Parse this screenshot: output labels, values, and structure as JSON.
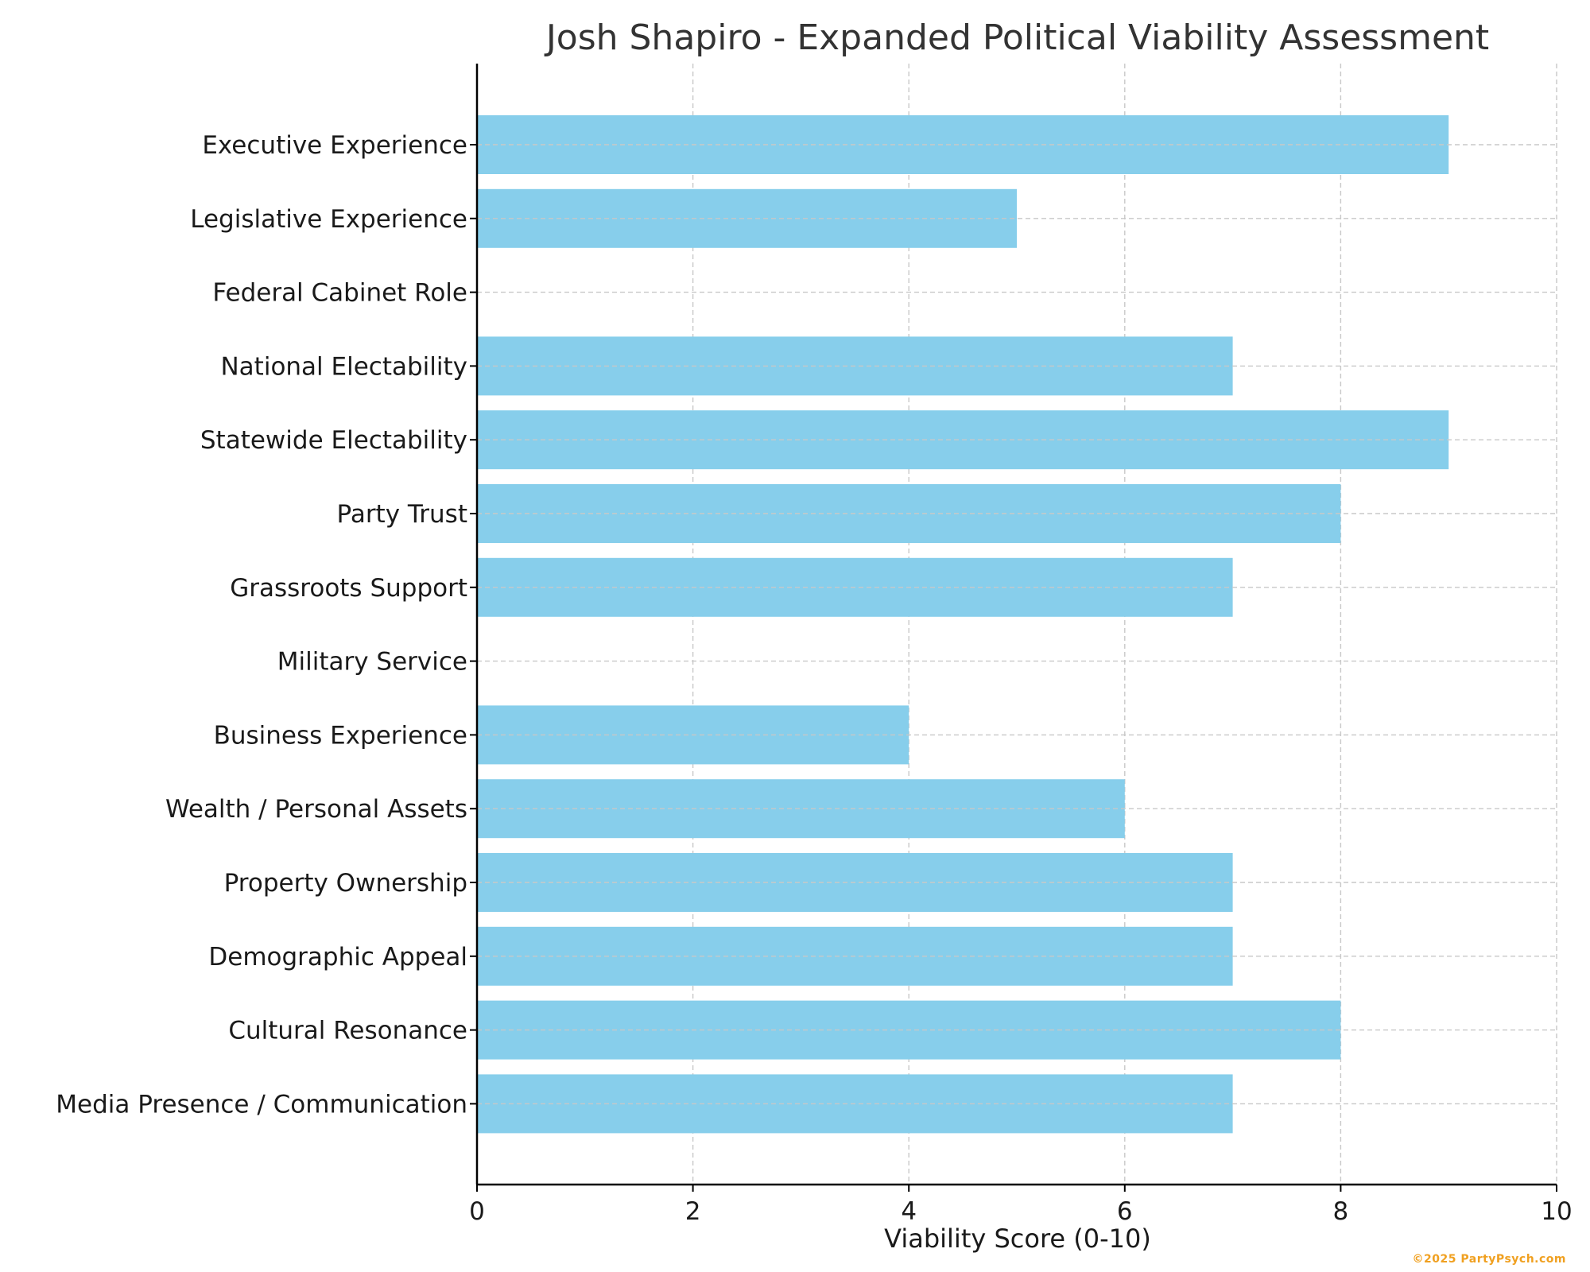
{
  "chart_data": {
    "type": "bar",
    "orientation": "horizontal",
    "title": "Josh Shapiro - Expanded Political Viability Assessment",
    "xlabel": "Viability Score (0-10)",
    "ylabel": "",
    "xlim": [
      0,
      10
    ],
    "xticks": [
      "0",
      "2",
      "4",
      "6",
      "8",
      "10"
    ],
    "grid": true,
    "bar_color": "#87CEEB",
    "categories": [
      "Executive Experience",
      "Legislative Experience",
      "Federal Cabinet Role",
      "National Electability",
      "Statewide Electability",
      "Party Trust",
      "Grassroots Support",
      "Military Service",
      "Business Experience",
      "Wealth / Personal Assets",
      "Property Ownership",
      "Demographic Appeal",
      "Cultural Resonance",
      "Media Presence / Communication"
    ],
    "values": [
      9,
      5,
      0,
      7,
      9,
      8,
      7,
      0,
      4,
      6,
      7,
      7,
      8,
      7
    ]
  },
  "footer": {
    "watermark": "©2025 PartyPsych.com"
  }
}
